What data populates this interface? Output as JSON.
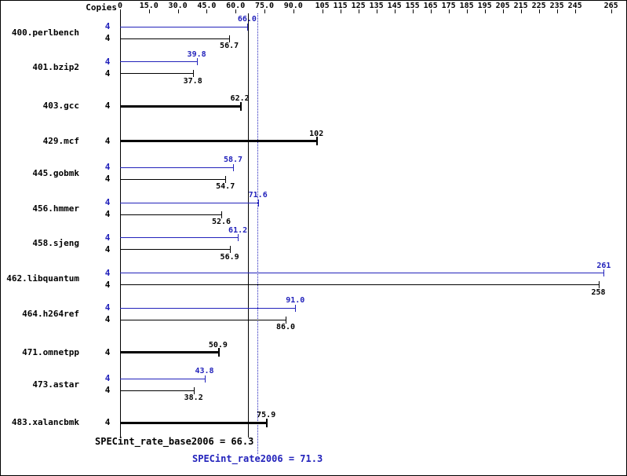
{
  "chart_data": {
    "type": "bar",
    "orientation": "horizontal",
    "copies_header": "Copies",
    "axis_break": 105,
    "xlim": [
      0,
      265
    ],
    "axis_ticks": [
      {
        "value": 0,
        "label": "0"
      },
      {
        "value": 15,
        "label": "15.0"
      },
      {
        "value": 30,
        "label": "30.0"
      },
      {
        "value": 45,
        "label": "45.0"
      },
      {
        "value": 60,
        "label": "60.0"
      },
      {
        "value": 75,
        "label": "75.0"
      },
      {
        "value": 90,
        "label": "90.0"
      },
      {
        "value": 105,
        "label": "105"
      },
      {
        "value": 115,
        "label": "115"
      },
      {
        "value": 125,
        "label": "125"
      },
      {
        "value": 135,
        "label": "135"
      },
      {
        "value": 145,
        "label": "145"
      },
      {
        "value": 155,
        "label": "155"
      },
      {
        "value": 165,
        "label": "165"
      },
      {
        "value": 175,
        "label": "175"
      },
      {
        "value": 185,
        "label": "185"
      },
      {
        "value": 195,
        "label": "195"
      },
      {
        "value": 205,
        "label": "205"
      },
      {
        "value": 215,
        "label": "215"
      },
      {
        "value": 225,
        "label": "225"
      },
      {
        "value": 235,
        "label": "235"
      },
      {
        "value": 245,
        "label": "245"
      },
      {
        "value": 265,
        "label": "265"
      }
    ],
    "benchmarks": [
      {
        "name": "400.perlbench",
        "copies": "4",
        "peak": {
          "value": 66.0,
          "label": "66.0"
        },
        "base": {
          "value": 56.7,
          "label": "56.7"
        }
      },
      {
        "name": "401.bzip2",
        "copies": "4",
        "peak": {
          "value": 39.8,
          "label": "39.8"
        },
        "base": {
          "value": 37.8,
          "label": "37.8"
        }
      },
      {
        "name": "403.gcc",
        "copies": "4",
        "peak": null,
        "base": {
          "value": 62.2,
          "label": "62.2"
        }
      },
      {
        "name": "429.mcf",
        "copies": "4",
        "peak": null,
        "base": {
          "value": 102,
          "label": "102"
        }
      },
      {
        "name": "445.gobmk",
        "copies": "4",
        "peak": {
          "value": 58.7,
          "label": "58.7"
        },
        "base": {
          "value": 54.7,
          "label": "54.7"
        }
      },
      {
        "name": "456.hmmer",
        "copies": "4",
        "peak": {
          "value": 71.6,
          "label": "71.6"
        },
        "base": {
          "value": 52.6,
          "label": "52.6"
        }
      },
      {
        "name": "458.sjeng",
        "copies": "4",
        "peak": {
          "value": 61.2,
          "label": "61.2"
        },
        "base": {
          "value": 56.9,
          "label": "56.9"
        }
      },
      {
        "name": "462.libquantum",
        "copies": "4",
        "peak": {
          "value": 261,
          "label": "261"
        },
        "base": {
          "value": 258,
          "label": "258"
        }
      },
      {
        "name": "464.h264ref",
        "copies": "4",
        "peak": {
          "value": 91.0,
          "label": "91.0"
        },
        "base": {
          "value": 86.0,
          "label": "86.0"
        }
      },
      {
        "name": "471.omnetpp",
        "copies": "4",
        "peak": null,
        "base": {
          "value": 50.9,
          "label": "50.9"
        }
      },
      {
        "name": "473.astar",
        "copies": "4",
        "peak": {
          "value": 43.8,
          "label": "43.8"
        },
        "base": {
          "value": 38.2,
          "label": "38.2"
        }
      },
      {
        "name": "483.xalancbmk",
        "copies": "4",
        "peak": null,
        "base": {
          "value": 75.9,
          "label": "75.9"
        }
      }
    ],
    "means": {
      "base": {
        "value": 66.3,
        "label": "SPECint_rate_base2006 = 66.3"
      },
      "peak": {
        "value": 71.3,
        "label": "SPECint_rate2006 = 71.3"
      }
    },
    "colors": {
      "peak": "#2222bb",
      "base": "#000000"
    }
  }
}
